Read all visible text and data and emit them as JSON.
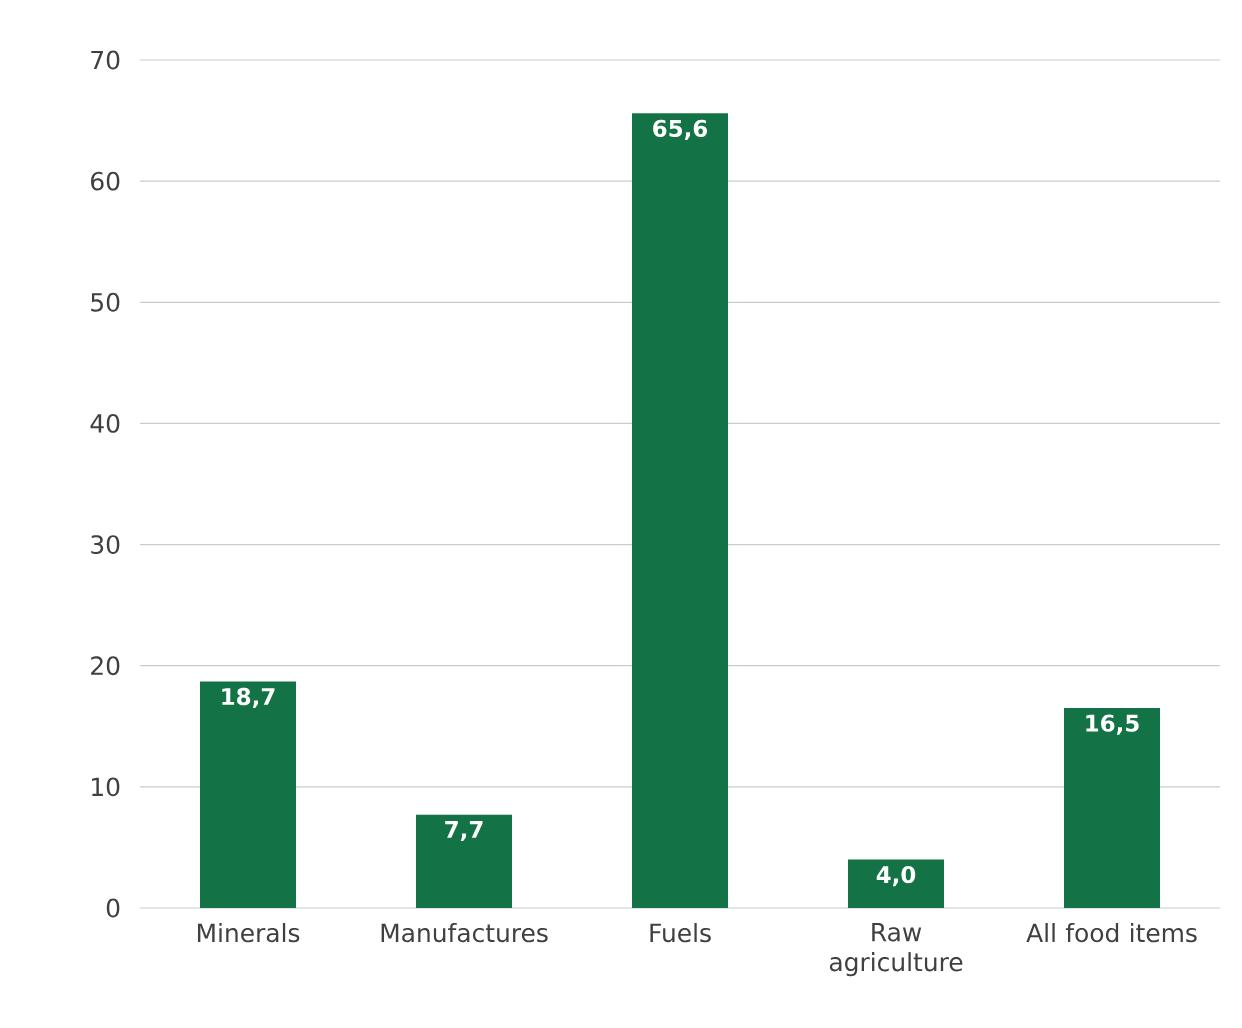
{
  "chart_data": {
    "type": "bar",
    "categories": [
      "Minerals",
      "Manufactures",
      "Fuels",
      "Raw agriculture",
      "All food items"
    ],
    "values": [
      18.7,
      7.7,
      65.6,
      4.0,
      16.5
    ],
    "value_labels": [
      "18,7",
      "7,7",
      "65,6",
      "4,0",
      "16,5"
    ],
    "color": "#147346",
    "ylim": [
      0,
      70
    ],
    "yticks": [
      0,
      10,
      20,
      30,
      40,
      50,
      60,
      70
    ],
    "grid": "y"
  }
}
